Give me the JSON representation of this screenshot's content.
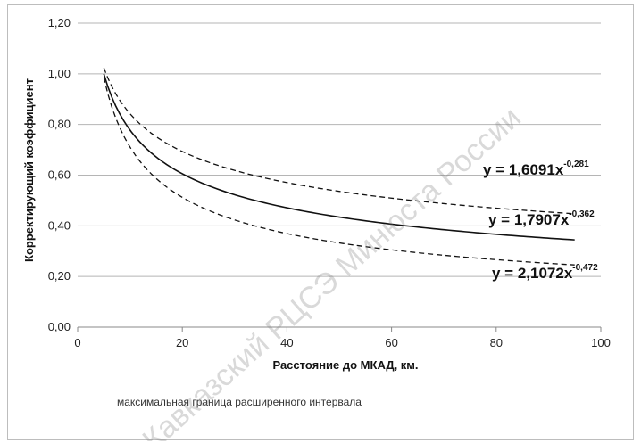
{
  "chart_data": {
    "type": "line",
    "xlabel": "Расстояние до МКАД, км.",
    "ylabel": "Корректирующий коэффициент",
    "xlim": [
      0,
      100
    ],
    "ylim": [
      0,
      1.2
    ],
    "x_ticks": [
      0,
      20,
      40,
      60,
      80,
      100
    ],
    "x_tick_labels": [
      "0",
      "20",
      "40",
      "60",
      "80",
      "100"
    ],
    "y_ticks": [
      0,
      0.2,
      0.4,
      0.6,
      0.8,
      1.0,
      1.2
    ],
    "y_tick_labels": [
      "0,00",
      "0,20",
      "0,40",
      "0,60",
      "0,80",
      "1,00",
      "1,20"
    ],
    "grid": "horizontal",
    "x_range_plotted": [
      5,
      95
    ],
    "series": [
      {
        "equation_label": "y = 1,6091x",
        "exponent_label": "-0,281",
        "style": "dashed",
        "coef": 1.6091,
        "exp": -0.281,
        "x": [
          5,
          10,
          20,
          30,
          40,
          50,
          60,
          70,
          80,
          90,
          95
        ],
        "y": [
          1.02,
          0.84,
          0.69,
          0.62,
          0.57,
          0.54,
          0.51,
          0.49,
          0.47,
          0.45,
          0.45
        ]
      },
      {
        "equation_label": "y = 1,7907x",
        "exponent_label": "-0,362",
        "style": "solid",
        "coef": 1.7907,
        "exp": -0.362,
        "x": [
          5,
          10,
          20,
          30,
          40,
          50,
          60,
          70,
          80,
          90,
          95
        ],
        "y": [
          1.0,
          0.78,
          0.61,
          0.52,
          0.47,
          0.43,
          0.41,
          0.38,
          0.37,
          0.35,
          0.34
        ]
      },
      {
        "equation_label": "y = 2,1072x",
        "exponent_label": "-0,472",
        "style": "dashed",
        "coef": 2.1072,
        "exp": -0.472,
        "x": [
          5,
          10,
          20,
          30,
          40,
          50,
          60,
          70,
          80,
          90,
          95
        ],
        "y": [
          0.98,
          0.71,
          0.51,
          0.42,
          0.37,
          0.33,
          0.31,
          0.29,
          0.27,
          0.25,
          0.25
        ]
      }
    ],
    "legend": {
      "placement": "bottom-left",
      "label": "максимальная граница расширенного интервала"
    }
  },
  "watermark": "Кавказский РЦСЭ Минюста России",
  "colors": {
    "line": "#111111",
    "grid": "#b5b5b5",
    "border": "#bdbdbd"
  }
}
